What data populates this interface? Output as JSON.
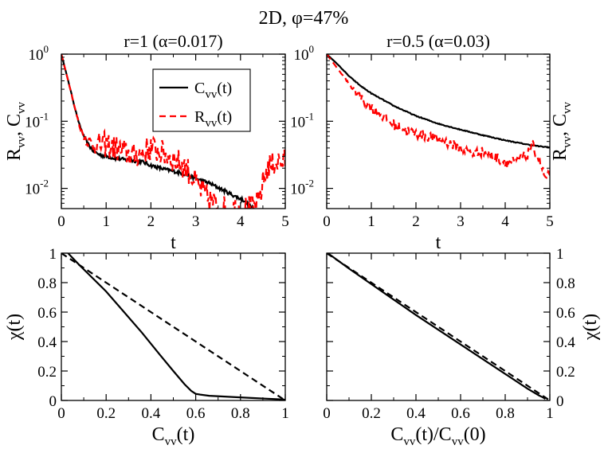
{
  "figure_title": "2D, φ=47%",
  "chart_data": [
    {
      "id": "top-left",
      "type": "line",
      "title": "r=1 (α=0.017)",
      "xlabel": "t",
      "ylabel": {
        "base1": "R",
        "sub1": "vv",
        "sep": ", ",
        "base2": "C",
        "sub2": "vv"
      },
      "yscale": "log",
      "xlim": [
        0,
        5
      ],
      "ylim": [
        0.005,
        1
      ],
      "xticks": [
        0,
        1,
        2,
        3,
        4,
        5
      ],
      "xtick_labels": [
        "0",
        "1",
        "2",
        "3",
        "4",
        "5"
      ],
      "yticks": [
        1,
        0.1,
        0.01
      ],
      "ytick_labels": [
        {
          "base": "10",
          "exp": "0"
        },
        {
          "base": "10",
          "exp": "-1"
        },
        {
          "base": "10",
          "exp": "-2"
        }
      ],
      "legend": {
        "position": "top-right",
        "entries": [
          {
            "base": "C",
            "sub": "vv",
            "arg": "(t)",
            "color": "#000000",
            "dash": "solid"
          },
          {
            "base": "R",
            "sub": "vv",
            "arg": "(t)",
            "color": "#ff0000",
            "dash": "dashed"
          }
        ]
      },
      "series": [
        {
          "name": "C_vv(t)",
          "color": "#000000",
          "dash": "solid",
          "noise": 0.06,
          "x": [
            0,
            0.1,
            0.2,
            0.3,
            0.4,
            0.5,
            0.6,
            0.7,
            0.8,
            0.9,
            1.0,
            1.2,
            1.4,
            1.6,
            1.8,
            2.0,
            2.2,
            2.5,
            2.8,
            3.0,
            3.3,
            3.6,
            3.9,
            4.1,
            4.2,
            4.3
          ],
          "y": [
            1.0,
            0.55,
            0.3,
            0.16,
            0.09,
            0.06,
            0.045,
            0.037,
            0.033,
            0.031,
            0.03,
            0.028,
            0.027,
            0.026,
            0.025,
            0.022,
            0.02,
            0.018,
            0.016,
            0.014,
            0.012,
            0.0095,
            0.0075,
            0.0065,
            0.0055,
            0.005
          ]
        },
        {
          "name": "R_vv(t)",
          "color": "#ff0000",
          "dash": "dashed",
          "noise": 0.45,
          "x": [
            0,
            0.1,
            0.2,
            0.3,
            0.4,
            0.5,
            0.6,
            0.7,
            0.8,
            1.0,
            1.2,
            1.4,
            1.6,
            1.8,
            2.0,
            2.2,
            2.4,
            2.6,
            2.8,
            3.0,
            3.2,
            3.4,
            3.6,
            3.8,
            4.0,
            4.2,
            4.3,
            4.4,
            4.5,
            4.6,
            4.8,
            5.0
          ],
          "y": [
            1.0,
            0.55,
            0.3,
            0.16,
            0.09,
            0.06,
            0.05,
            0.045,
            0.045,
            0.045,
            0.04,
            0.035,
            0.03,
            0.035,
            0.04,
            0.035,
            0.03,
            0.025,
            0.02,
            0.012,
            0.008,
            0.006,
            0.005,
            0.005,
            0.005,
            0.005,
            0.005,
            0.006,
            0.012,
            0.02,
            0.025,
            0.025
          ]
        }
      ]
    },
    {
      "id": "top-right",
      "type": "line",
      "title": "r=0.5 (α=0.03)",
      "xlabel": "t",
      "ylabel": {
        "base1": "R",
        "sub1": "vv",
        "sep": ", ",
        "base2": "C",
        "sub2": "vv"
      },
      "yscale": "log",
      "xlim": [
        0,
        5
      ],
      "ylim": [
        0.005,
        1
      ],
      "xticks": [
        0,
        1,
        2,
        3,
        4,
        5
      ],
      "xtick_labels": [
        "0",
        "1",
        "2",
        "3",
        "4",
        "5"
      ],
      "yticks": [
        1,
        0.1,
        0.01
      ],
      "ytick_labels": [
        {
          "base": "10",
          "exp": "0"
        },
        {
          "base": "10",
          "exp": "-1"
        },
        {
          "base": "10",
          "exp": "-2"
        }
      ],
      "series": [
        {
          "name": "C_vv(t)",
          "color": "#000000",
          "dash": "solid",
          "noise": 0.015,
          "x": [
            0,
            0.25,
            0.5,
            0.75,
            1.0,
            1.5,
            2.0,
            2.5,
            3.0,
            3.5,
            4.0,
            4.5,
            4.8,
            5.0
          ],
          "y": [
            1.0,
            0.7,
            0.47,
            0.34,
            0.26,
            0.17,
            0.12,
            0.092,
            0.075,
            0.062,
            0.052,
            0.045,
            0.042,
            0.041
          ]
        },
        {
          "name": "R_vv(t)",
          "color": "#ff0000",
          "dash": "dashed",
          "noise": 0.18,
          "x": [
            0,
            0.25,
            0.5,
            0.75,
            1.0,
            1.25,
            1.5,
            1.75,
            2.0,
            2.5,
            3.0,
            3.25,
            3.5,
            3.75,
            4.0,
            4.25,
            4.5,
            4.6,
            4.75,
            4.9,
            5.0
          ],
          "y": [
            1.0,
            0.6,
            0.36,
            0.23,
            0.16,
            0.12,
            0.09,
            0.075,
            0.065,
            0.055,
            0.04,
            0.033,
            0.035,
            0.03,
            0.025,
            0.025,
            0.032,
            0.045,
            0.028,
            0.014,
            0.016
          ]
        }
      ]
    },
    {
      "id": "bottom-left",
      "type": "line",
      "title": "",
      "xlabel": {
        "base": "C",
        "sub": "vv",
        "arg": "(t)"
      },
      "ylabel": "χ(t)",
      "yscale": "linear",
      "xlim": [
        0,
        1
      ],
      "ylim": [
        0,
        1
      ],
      "xticks": [
        0,
        0.2,
        0.4,
        0.6,
        0.8,
        1
      ],
      "xtick_labels": [
        "0",
        "0.2",
        "0.4",
        "0.6",
        "0.8",
        "1"
      ],
      "yticks": [
        0,
        0.2,
        0.4,
        0.6,
        0.8,
        1
      ],
      "ytick_labels": [
        "0",
        "0.2",
        "0.4",
        "0.6",
        "0.8",
        "1"
      ],
      "series": [
        {
          "name": "chi(t)",
          "color": "#000000",
          "dash": "solid",
          "noise": 0,
          "x": [
            0.03,
            0.08,
            0.12,
            0.2,
            0.28,
            0.36,
            0.44,
            0.5,
            0.55,
            0.58,
            0.6,
            0.62,
            0.66,
            0.72,
            0.78,
            0.85,
            0.92,
            0.97,
            1.0
          ],
          "y": [
            1.0,
            0.92,
            0.86,
            0.74,
            0.6,
            0.46,
            0.31,
            0.2,
            0.11,
            0.065,
            0.045,
            0.04,
            0.032,
            0.027,
            0.022,
            0.017,
            0.012,
            0.008,
            0.005
          ]
        },
        {
          "name": "reference",
          "color": "#000000",
          "dash": "dashed",
          "noise": 0,
          "x": [
            0,
            1
          ],
          "y": [
            1,
            0
          ]
        }
      ]
    },
    {
      "id": "bottom-right",
      "type": "line",
      "title": "",
      "xlabel": {
        "base": "C",
        "sub": "vv",
        "arg": "(t)/",
        "base2": "C",
        "sub2": "vv",
        "arg2": "(0)"
      },
      "ylabel": "χ(t)",
      "yscale": "linear",
      "xlim": [
        0,
        1
      ],
      "ylim": [
        0,
        1
      ],
      "xticks": [
        0,
        0.2,
        0.4,
        0.6,
        0.8,
        1
      ],
      "xtick_labels": [
        "0",
        "0.2",
        "0.4",
        "0.6",
        "0.8",
        "1"
      ],
      "yticks": [
        0,
        0.2,
        0.4,
        0.6,
        0.8,
        1
      ],
      "ytick_labels": [
        "0",
        "0.2",
        "0.4",
        "0.6",
        "0.8",
        "1"
      ],
      "series": [
        {
          "name": "chi(t)",
          "color": "#000000",
          "dash": "solid",
          "noise": 0,
          "x": [
            0.005,
            0.1,
            0.2,
            0.3,
            0.4,
            0.5,
            0.6,
            0.7,
            0.8,
            0.9,
            0.95,
            0.97,
            0.98
          ],
          "y": [
            1.0,
            0.895,
            0.79,
            0.685,
            0.58,
            0.48,
            0.38,
            0.28,
            0.18,
            0.08,
            0.035,
            0.02,
            0.01
          ]
        },
        {
          "name": "reference",
          "color": "#000000",
          "dash": "dashed",
          "noise": 0,
          "x": [
            0,
            1
          ],
          "y": [
            1,
            0
          ]
        }
      ]
    }
  ]
}
